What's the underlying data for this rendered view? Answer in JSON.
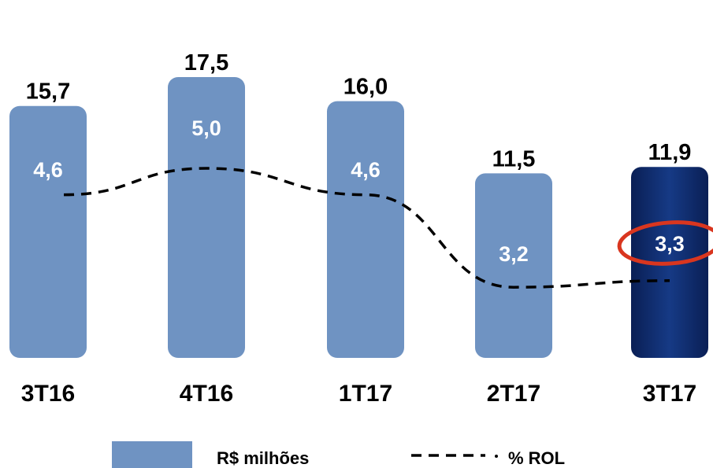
{
  "chart_data": {
    "type": "bar",
    "categories": [
      "3T16",
      "4T16",
      "1T17",
      "2T17",
      "3T17"
    ],
    "series": [
      {
        "name": "R$ milhões",
        "kind": "bar",
        "values": [
          15.7,
          17.5,
          16.0,
          11.5,
          11.9
        ],
        "labels": [
          "15,7",
          "17,5",
          "16,0",
          "11,5",
          "11,9"
        ],
        "color": "#6f93c2",
        "highlight_color": "#0e2a6b",
        "highlight_index": 4
      },
      {
        "name": "% ROL",
        "kind": "line",
        "style": "dashed",
        "values": [
          4.6,
          5.0,
          4.6,
          3.2,
          3.3
        ],
        "labels": [
          "4,6",
          "5,0",
          "4,6",
          "3,2",
          "3,3"
        ],
        "color": "#000000",
        "circled_index": 4,
        "circle_color": "#d9361f"
      }
    ],
    "ylim": [
      0,
      19
    ],
    "grid": false,
    "legend": "bottom",
    "title": "",
    "xlabel": "",
    "ylabel": ""
  }
}
